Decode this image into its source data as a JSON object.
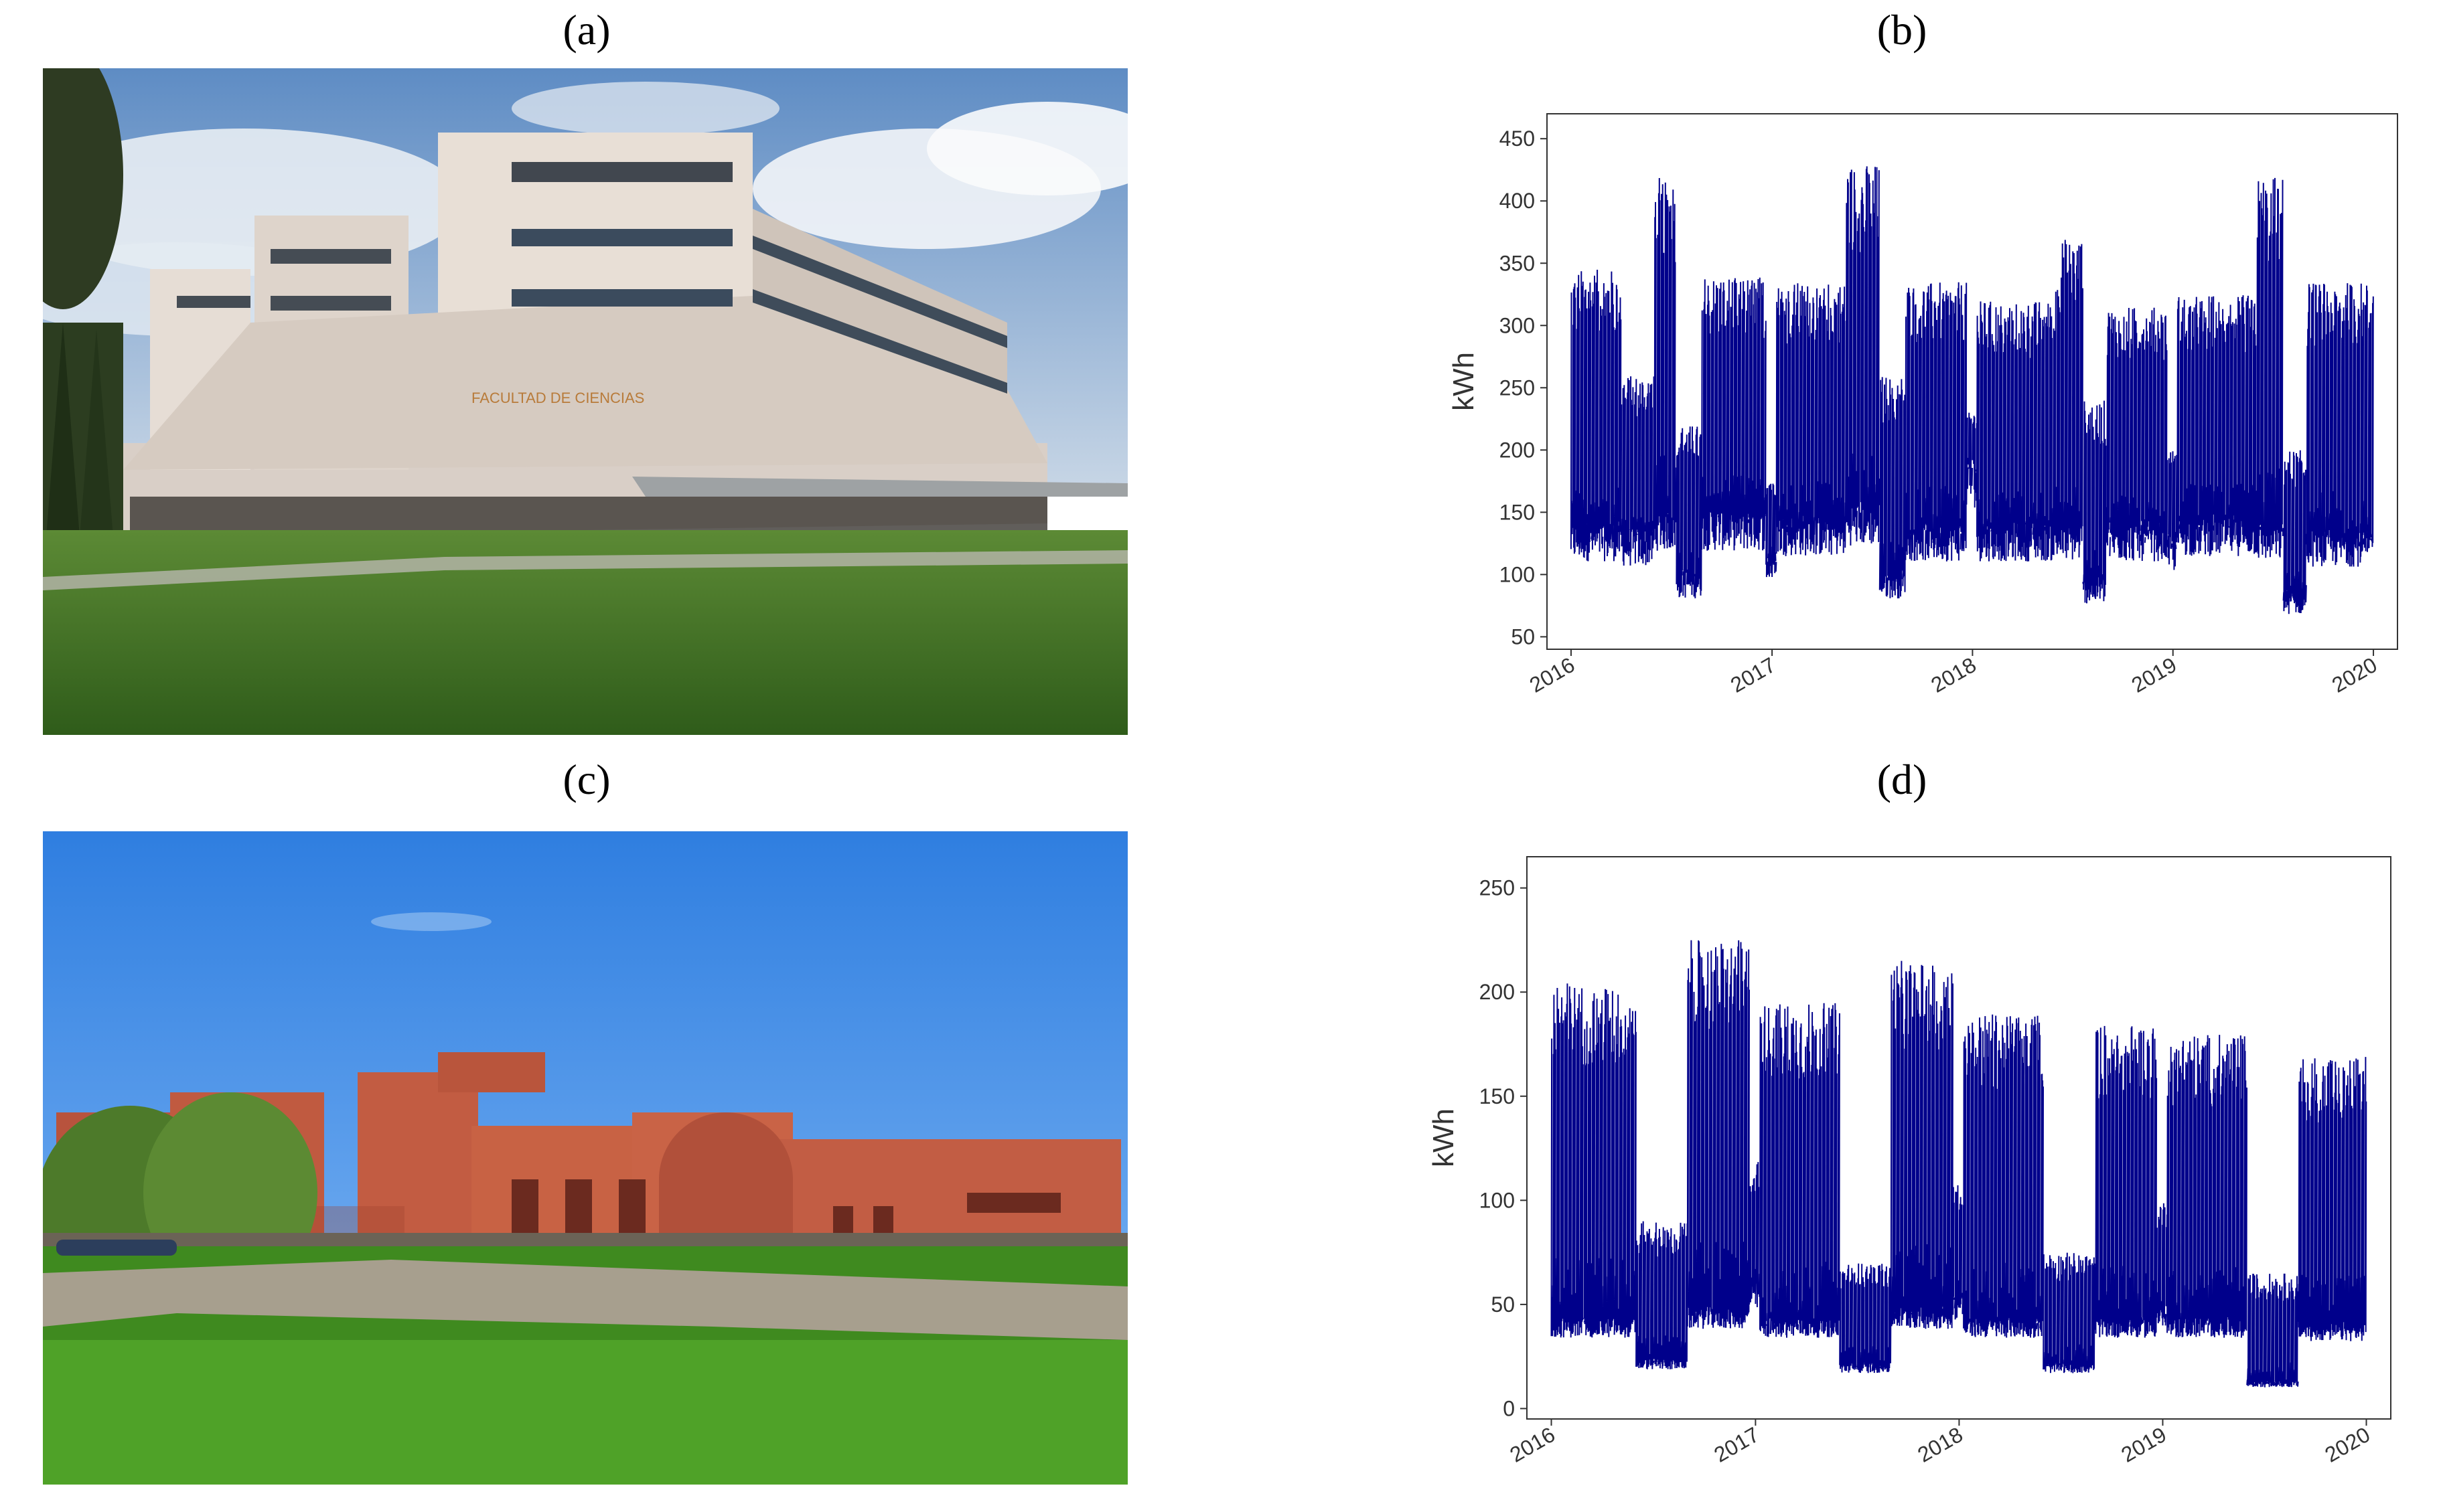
{
  "panels": {
    "a": "(a)",
    "b": "(b)",
    "c": "(c)",
    "d": "(d)"
  },
  "photo_a": {
    "sign_text": "FACULTAD DE CIENCIAS"
  },
  "colors": {
    "series": "#00008B",
    "sky_a": "#7fa6cf",
    "grass": "#3e7a24",
    "sky_c": "#4a8ee0",
    "brick": "#c4553c"
  },
  "chart_data": [
    {
      "type": "line",
      "title": "",
      "xlabel": "",
      "ylabel": "kWh",
      "x_range": [
        "2016-01-01",
        "2020-01-01"
      ],
      "x_ticks": [
        "2016",
        "2017",
        "2018",
        "2019",
        "2020"
      ],
      "y_ticks": [
        50,
        100,
        150,
        200,
        250,
        300,
        350,
        400,
        450
      ],
      "ylim": [
        40,
        470
      ],
      "grid": false,
      "series": [
        {
          "values_note": "",
          "segments": [
            {
              "start": "2016-01-01",
              "end": "2016-03-31",
              "base": 130,
              "peak": 345
            },
            {
              "start": "2016-04-01",
              "end": "2016-05-31",
              "base": 125,
              "peak": 260
            },
            {
              "start": "2016-06-01",
              "end": "2016-07-10",
              "base": 140,
              "peak": 420
            },
            {
              "start": "2016-07-11",
              "end": "2016-08-25",
              "base": 95,
              "peak": 220
            },
            {
              "start": "2016-08-26",
              "end": "2016-12-20",
              "base": 140,
              "peak": 340
            },
            {
              "start": "2016-12-21",
              "end": "2017-01-08",
              "base": 110,
              "peak": 180
            },
            {
              "start": "2017-01-09",
              "end": "2017-05-15",
              "base": 135,
              "peak": 335
            },
            {
              "start": "2017-05-16",
              "end": "2017-07-15",
              "base": 145,
              "peak": 430
            },
            {
              "start": "2017-07-16",
              "end": "2017-08-31",
              "base": 95,
              "peak": 260
            },
            {
              "start": "2017-09-01",
              "end": "2017-12-20",
              "base": 130,
              "peak": 335
            },
            {
              "start": "2017-12-21",
              "end": "2018-01-08",
              "base": 180,
              "peak": 230
            },
            {
              "start": "2018-01-09",
              "end": "2018-05-31",
              "base": 130,
              "peak": 320
            },
            {
              "start": "2018-06-01",
              "end": "2018-07-20",
              "base": 130,
              "peak": 370
            },
            {
              "start": "2018-07-21",
              "end": "2018-08-31",
              "base": 90,
              "peak": 240
            },
            {
              "start": "2018-09-01",
              "end": "2018-12-20",
              "base": 130,
              "peak": 315
            },
            {
              "start": "2018-12-21",
              "end": "2019-01-08",
              "base": 120,
              "peak": 200
            },
            {
              "start": "2019-01-09",
              "end": "2019-05-31",
              "base": 135,
              "peak": 325
            },
            {
              "start": "2019-06-01",
              "end": "2019-07-20",
              "base": 130,
              "peak": 420
            },
            {
              "start": "2019-07-21",
              "end": "2019-08-31",
              "base": 80,
              "peak": 200
            },
            {
              "start": "2019-09-01",
              "end": "2019-12-31",
              "base": 125,
              "peak": 335
            }
          ]
        }
      ]
    },
    {
      "type": "line",
      "title": "",
      "xlabel": "",
      "ylabel": "kWh",
      "x_range": [
        "2016-01-01",
        "2020-01-01"
      ],
      "x_ticks": [
        "2016",
        "2017",
        "2018",
        "2019",
        "2020"
      ],
      "y_ticks": [
        0,
        50,
        100,
        150,
        200,
        250
      ],
      "ylim": [
        -5,
        265
      ],
      "grid": false,
      "series": [
        {
          "values_note": "",
          "segments": [
            {
              "start": "2016-01-01",
              "end": "2016-05-31",
              "base": 40,
              "peak": 205
            },
            {
              "start": "2016-06-01",
              "end": "2016-08-31",
              "base": 22,
              "peak": 90
            },
            {
              "start": "2016-09-01",
              "end": "2016-12-20",
              "base": 45,
              "peak": 225
            },
            {
              "start": "2016-12-21",
              "end": "2017-01-08",
              "base": 55,
              "peak": 120
            },
            {
              "start": "2017-01-09",
              "end": "2017-05-31",
              "base": 40,
              "peak": 195
            },
            {
              "start": "2017-06-01",
              "end": "2017-08-31",
              "base": 20,
              "peak": 70
            },
            {
              "start": "2017-09-01",
              "end": "2017-12-20",
              "base": 45,
              "peak": 215
            },
            {
              "start": "2017-12-21",
              "end": "2018-01-08",
              "base": 50,
              "peak": 110
            },
            {
              "start": "2018-01-09",
              "end": "2018-05-31",
              "base": 40,
              "peak": 190
            },
            {
              "start": "2018-06-01",
              "end": "2018-08-31",
              "base": 20,
              "peak": 75
            },
            {
              "start": "2018-09-01",
              "end": "2018-12-20",
              "base": 40,
              "peak": 185
            },
            {
              "start": "2018-12-21",
              "end": "2019-01-08",
              "base": 45,
              "peak": 100
            },
            {
              "start": "2019-01-09",
              "end": "2019-05-31",
              "base": 40,
              "peak": 180
            },
            {
              "start": "2019-06-01",
              "end": "2019-08-31",
              "base": 12,
              "peak": 65
            },
            {
              "start": "2019-09-01",
              "end": "2019-12-31",
              "base": 38,
              "peak": 170
            }
          ]
        }
      ]
    }
  ]
}
